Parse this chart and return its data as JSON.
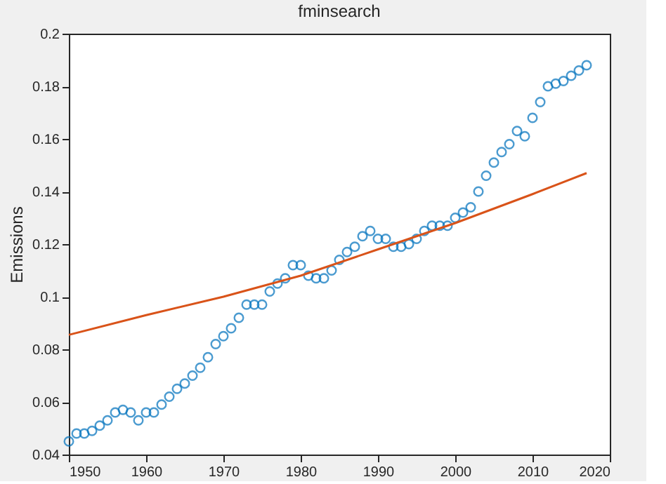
{
  "chart_data": {
    "type": "scatter",
    "title": "fminsearch",
    "ylabel": "Emissions",
    "xlim": [
      1950,
      2020
    ],
    "xticks": [
      1950,
      1960,
      1970,
      1980,
      1990,
      2000,
      2010,
      2020
    ],
    "ylim": [
      0.04,
      0.2
    ],
    "yticks": [
      0.04,
      0.06,
      0.08,
      0.1,
      0.12,
      0.14,
      0.16,
      0.18,
      0.2
    ],
    "grid": false,
    "series": [
      {
        "marker": "circle",
        "color": "#0072bd",
        "x": [
          1950,
          1951,
          1952,
          1953,
          1954,
          1955,
          1956,
          1957,
          1958,
          1959,
          1960,
          1961,
          1962,
          1963,
          1964,
          1965,
          1966,
          1967,
          1968,
          1969,
          1970,
          1971,
          1972,
          1973,
          1974,
          1975,
          1976,
          1977,
          1978,
          1979,
          1980,
          1981,
          1982,
          1983,
          1984,
          1985,
          1986,
          1987,
          1988,
          1989,
          1990,
          1991,
          1992,
          1993,
          1994,
          1995,
          1996,
          1997,
          1998,
          1999,
          2000,
          2001,
          2002,
          2003,
          2004,
          2005,
          2006,
          2007,
          2008,
          2009,
          2010,
          2011,
          2012,
          2013,
          2014,
          2015,
          2016,
          2017
        ],
        "values": [
          0.045,
          0.048,
          0.048,
          0.049,
          0.051,
          0.053,
          0.056,
          0.057,
          0.056,
          0.053,
          0.056,
          0.056,
          0.059,
          0.062,
          0.065,
          0.067,
          0.07,
          0.073,
          0.077,
          0.082,
          0.085,
          0.088,
          0.092,
          0.097,
          0.097,
          0.097,
          0.102,
          0.105,
          0.107,
          0.112,
          0.112,
          0.108,
          0.107,
          0.107,
          0.11,
          0.114,
          0.117,
          0.119,
          0.123,
          0.125,
          0.122,
          0.122,
          0.119,
          0.119,
          0.12,
          0.122,
          0.125,
          0.127,
          0.127,
          0.127,
          0.13,
          0.132,
          0.134,
          0.14,
          0.146,
          0.151,
          0.155,
          0.158,
          0.163,
          0.161,
          0.168,
          0.174,
          0.18,
          0.181,
          0.182,
          0.184,
          0.186,
          0.188
        ]
      },
      {
        "type": "line",
        "line_style": "solid",
        "color": "#d95319",
        "x": [
          1950,
          1960,
          1970,
          1980,
          1990,
          2000,
          2010,
          2017
        ],
        "values": [
          0.0855,
          0.093,
          0.1,
          0.108,
          0.118,
          0.128,
          0.139,
          0.147
        ]
      }
    ]
  }
}
